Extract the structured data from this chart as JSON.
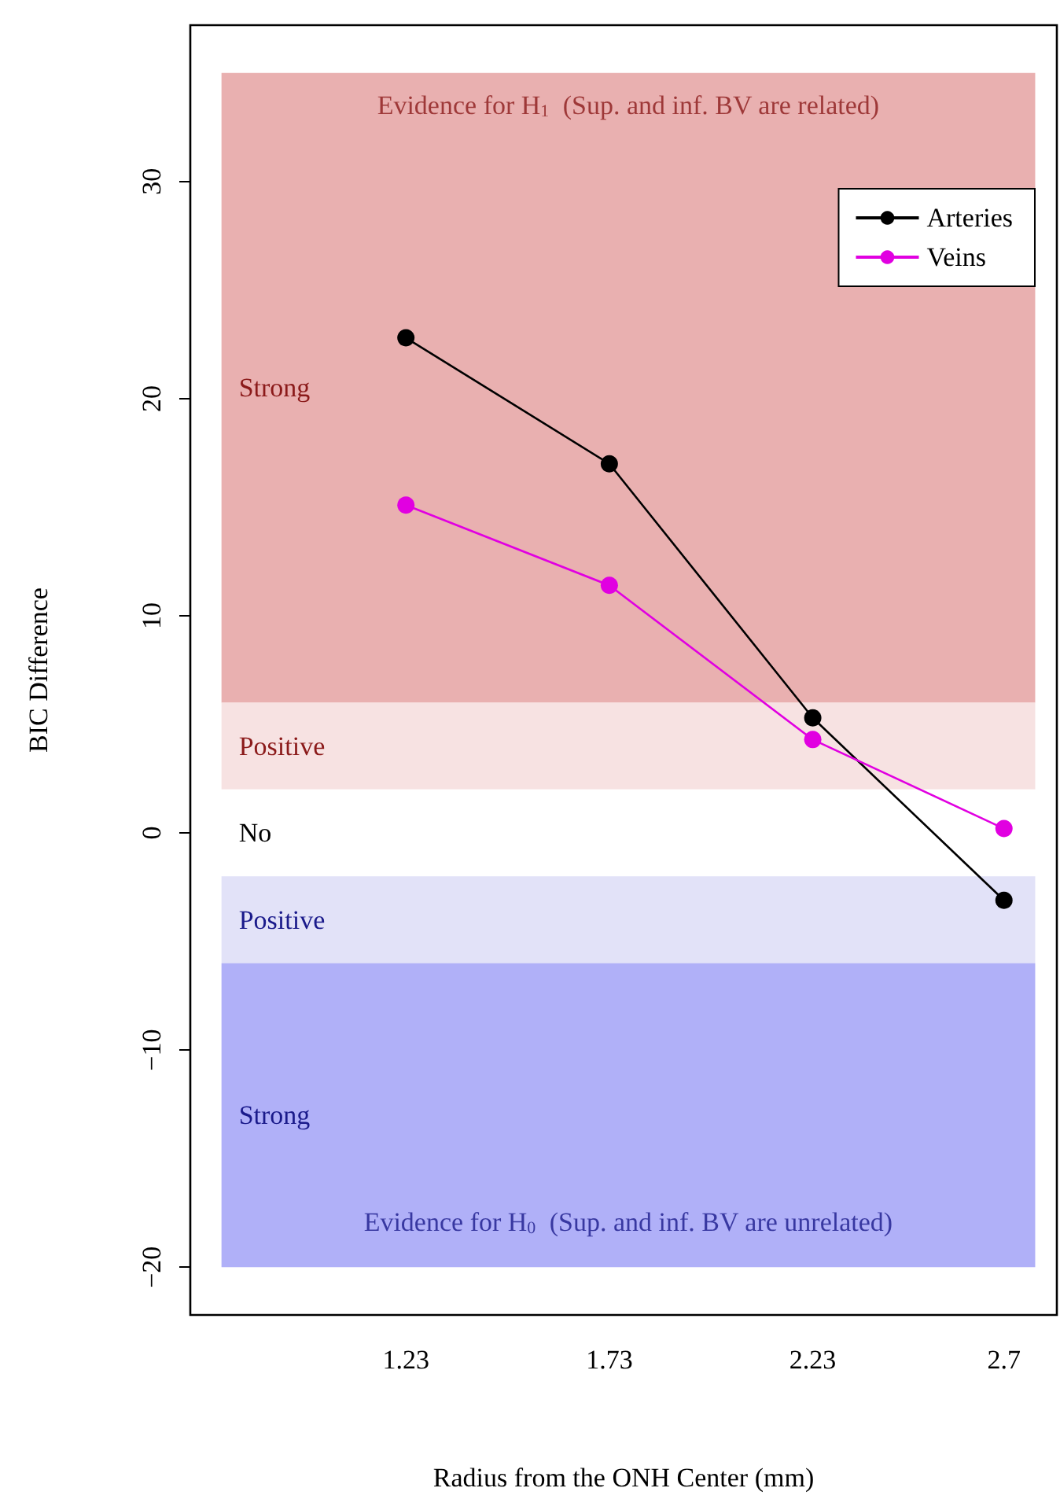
{
  "chart_data": {
    "type": "line",
    "xlabel": "Radius from the ONH Center (mm)",
    "ylabel": "BIC Difference",
    "x": [
      1.23,
      1.73,
      2.23,
      2.7
    ],
    "series": [
      {
        "name": "Arteries",
        "color": "#000000",
        "values": [
          22.8,
          17.0,
          5.3,
          -3.1
        ]
      },
      {
        "name": "Veins",
        "color": "#e100e1",
        "values": [
          15.1,
          11.4,
          4.3,
          0.2
        ]
      }
    ],
    "xlim": [
      0.7,
      2.83
    ],
    "xticks": [
      1.23,
      1.73,
      2.23,
      2.7
    ],
    "ylim": [
      -22.2,
      37.2
    ],
    "yticks": [
      -20,
      -10,
      0,
      10,
      20,
      30
    ],
    "bands": [
      {
        "axis": "y",
        "from": 6,
        "to": 35,
        "label": "Strong",
        "color": "#e9b0b0"
      },
      {
        "axis": "y",
        "from": 2,
        "to": 6,
        "label": "Positive",
        "color": "#f7e2e2"
      },
      {
        "axis": "y",
        "from": -2,
        "to": 2,
        "label": "No",
        "color": "#ffffff"
      },
      {
        "axis": "y",
        "from": -6,
        "to": -2,
        "label": "Positive",
        "color": "#e2e2f8"
      },
      {
        "axis": "y",
        "from": -20,
        "to": -6,
        "label": "Strong",
        "color": "#b0b0f8"
      }
    ],
    "annotations": [
      "Evidence for H$_{1}$  (Sup. and inf. BV are related)",
      "Evidence for H$_{0}$  (Sup. and inf. BV are unrelated)"
    ],
    "marker": "circle",
    "line_style": "solid",
    "legend": "top right",
    "grid": false
  }
}
